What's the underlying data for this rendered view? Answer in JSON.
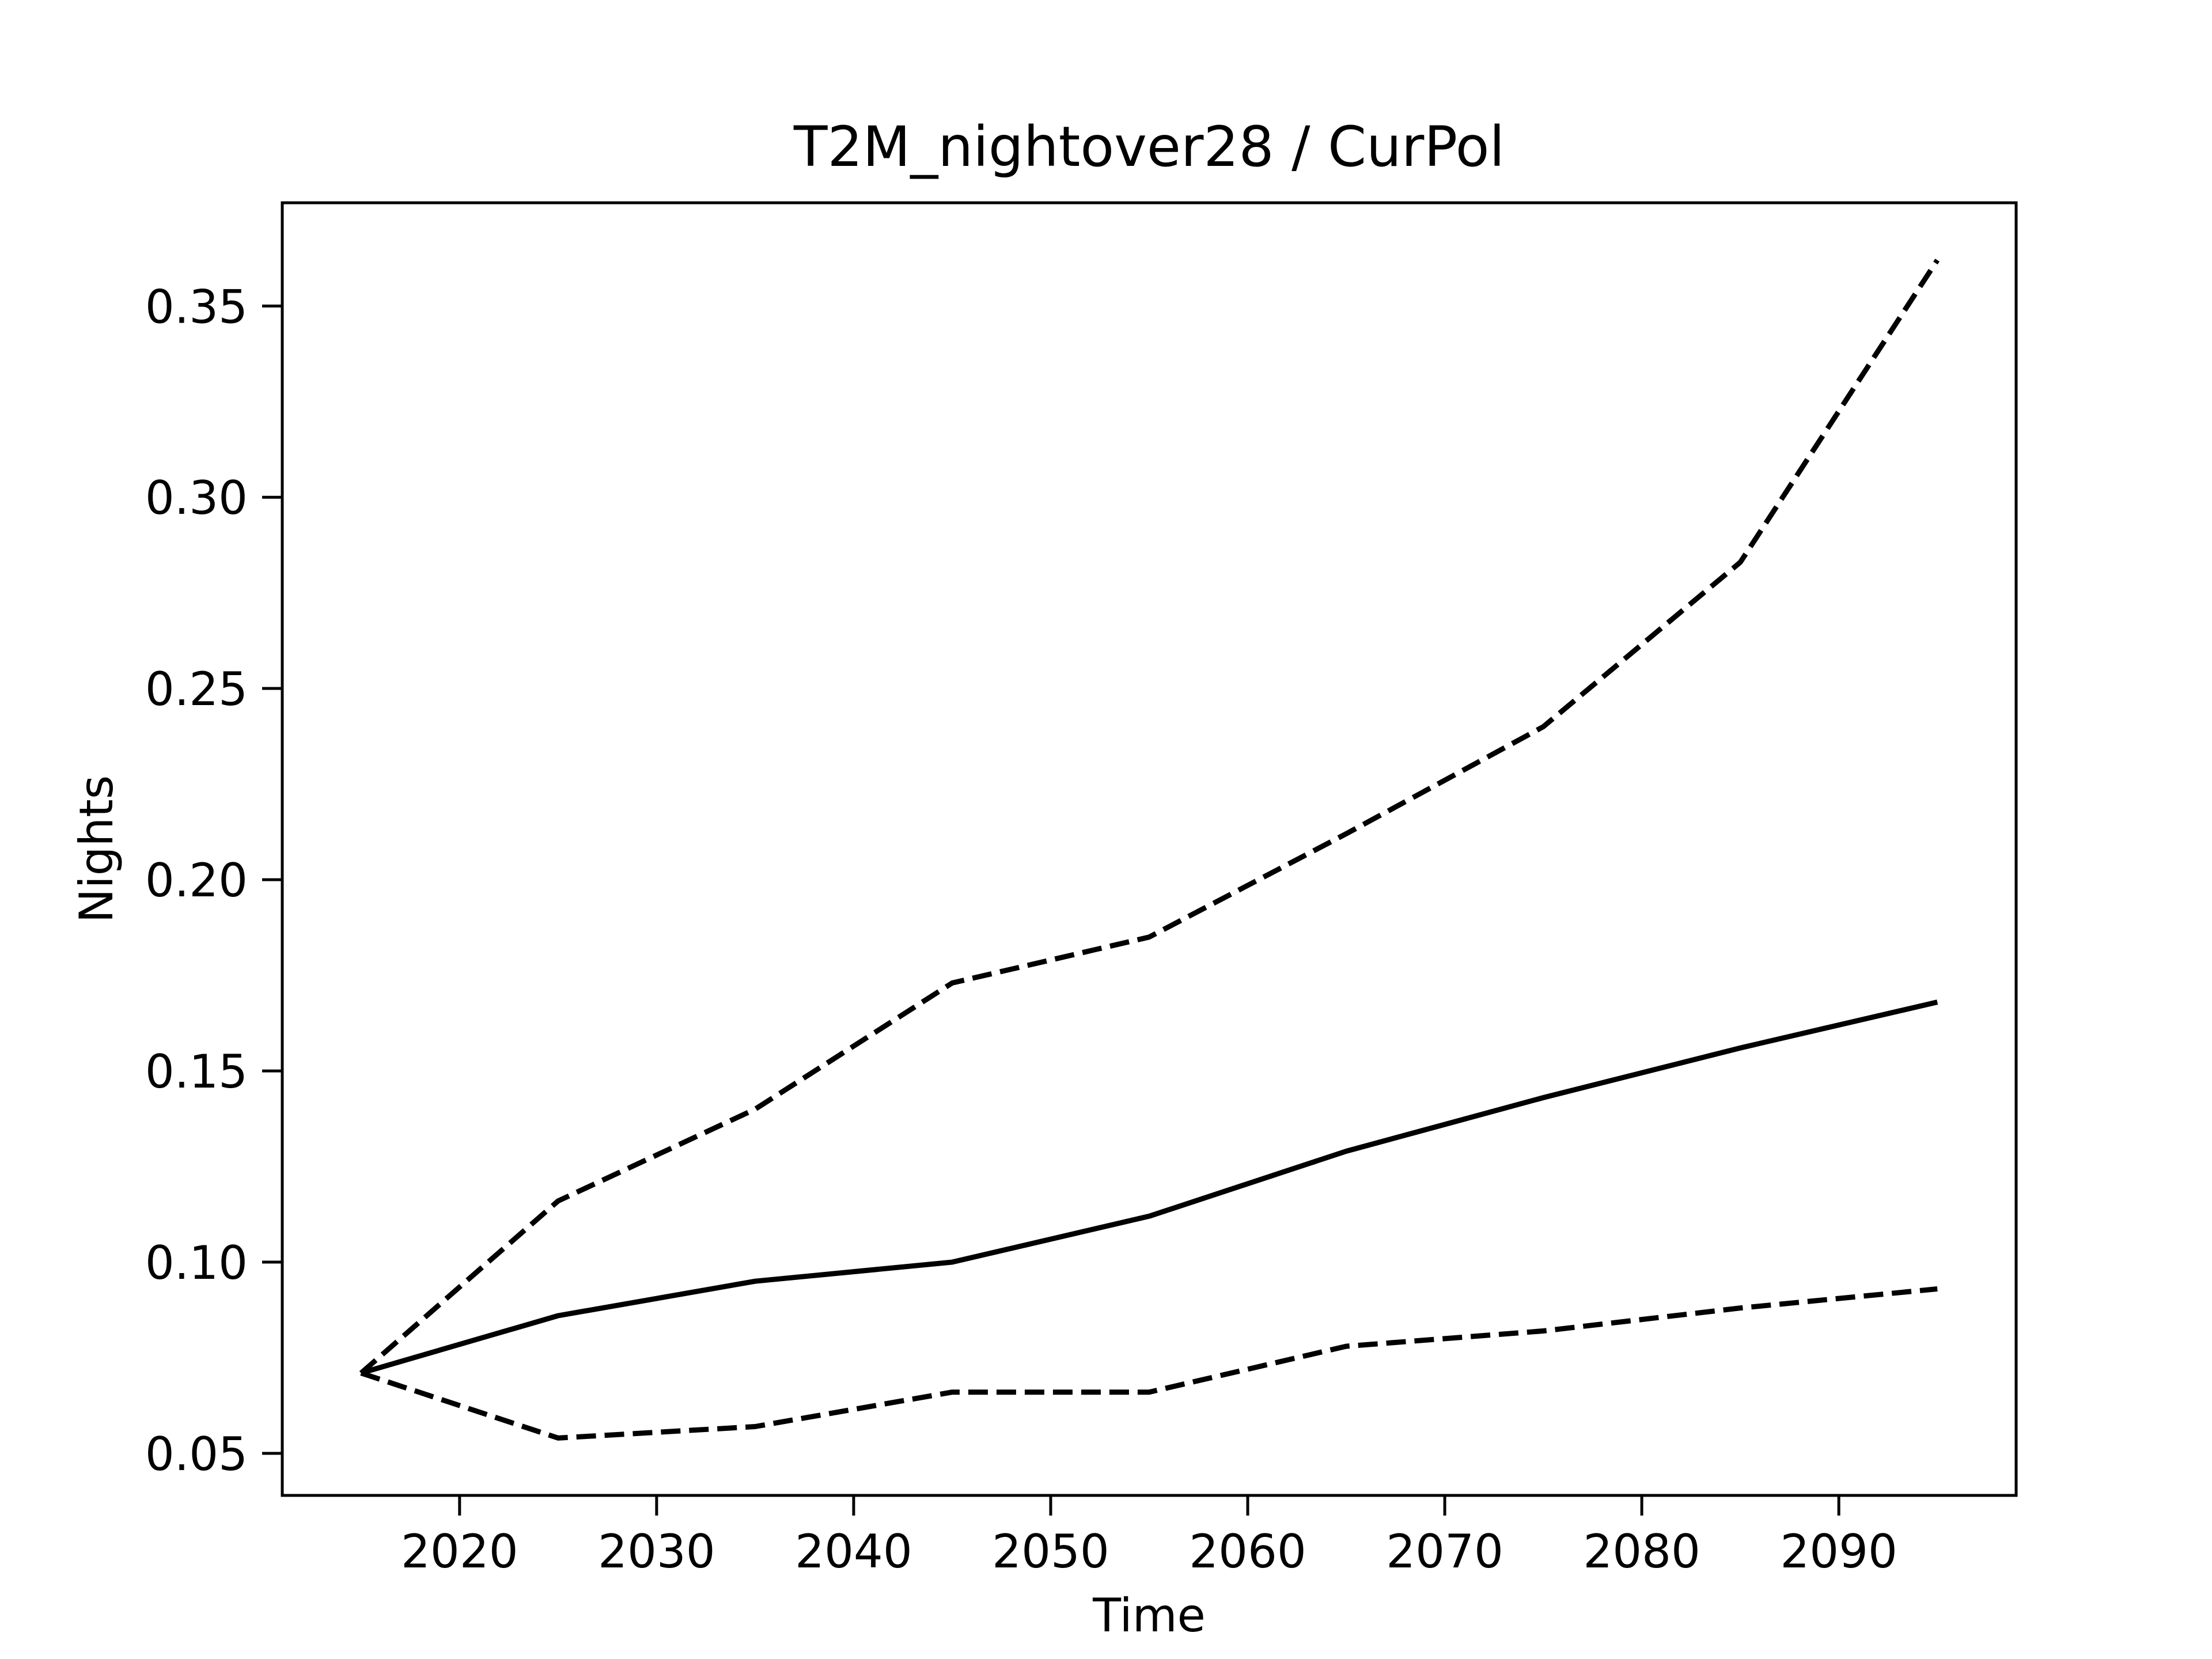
{
  "chart_data": {
    "type": "line",
    "title": "T2M_nightover28 / CurPol",
    "xlabel": "Time",
    "ylabel": "Nights",
    "xlim": [
      2011,
      2099
    ],
    "ylim": [
      0.039,
      0.377
    ],
    "xticks": [
      2020,
      2030,
      2040,
      2050,
      2060,
      2070,
      2080,
      2090
    ],
    "yticks": [
      0.05,
      0.1,
      0.15,
      0.2,
      0.25,
      0.3,
      0.35
    ],
    "ytick_labels": [
      "0.05",
      "0.10",
      "0.15",
      "0.20",
      "0.25",
      "0.30",
      "0.35"
    ],
    "grid": false,
    "legend": "none",
    "x": [
      2015,
      2025,
      2035,
      2045,
      2055,
      2065,
      2075,
      2085,
      2095
    ],
    "series": [
      {
        "style": "dashed",
        "color": "#000000",
        "values": [
          0.071,
          0.116,
          0.14,
          0.173,
          0.185,
          0.212,
          0.24,
          0.283,
          0.362
        ]
      },
      {
        "style": "solid",
        "color": "#000000",
        "values": [
          0.071,
          0.086,
          0.095,
          0.1,
          0.112,
          0.129,
          0.143,
          0.156,
          0.168
        ]
      },
      {
        "style": "dashed",
        "color": "#000000",
        "values": [
          0.071,
          0.054,
          0.057,
          0.066,
          0.066,
          0.078,
          0.082,
          0.088,
          0.093
        ]
      }
    ]
  }
}
